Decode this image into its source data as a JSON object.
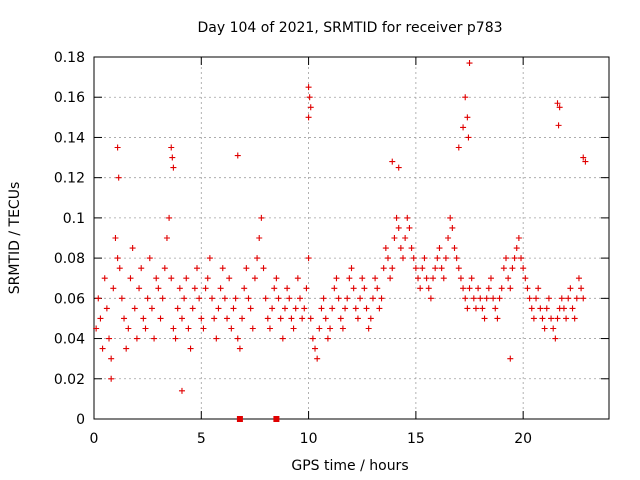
{
  "chart_data": {
    "type": "scatter",
    "title": "Day 104 of 2021, SRMTID for receiver p783",
    "xlabel": "GPS time / hours",
    "ylabel": "SRMTID / TECUs",
    "xlim": [
      0,
      24
    ],
    "ylim": [
      0,
      0.18
    ],
    "x_ticks": [
      0,
      5,
      10,
      15,
      20
    ],
    "x_tick_labels": [
      "0",
      "5",
      "10",
      "15",
      "20"
    ],
    "y_ticks": [
      0,
      0.02,
      0.04,
      0.06,
      0.08,
      0.1,
      0.12,
      0.14,
      0.16,
      0.18
    ],
    "y_tick_labels": [
      "0",
      "0.02",
      "0.04",
      "0.06",
      "0.08",
      "0.1",
      "0.12",
      "0.14",
      "0.16",
      "0.18"
    ],
    "grid": true,
    "marker": "+",
    "color": "#e00000",
    "data_gap_markers_x": [
      6.8,
      8.5
    ],
    "series": [
      {
        "name": "SRMTID",
        "x": [
          0.1,
          0.2,
          0.3,
          0.4,
          0.5,
          0.6,
          0.7,
          0.8,
          0.9,
          1.0,
          1.1,
          1.2,
          1.3,
          1.4,
          1.5,
          1.6,
          1.7,
          1.8,
          1.9,
          2.0,
          2.1,
          2.2,
          2.3,
          2.4,
          2.5,
          2.6,
          2.7,
          2.8,
          2.9,
          3.0,
          3.1,
          3.2,
          3.3,
          3.4,
          3.5,
          3.6,
          3.7,
          3.8,
          3.9,
          4.0,
          4.1,
          4.2,
          4.3,
          4.4,
          4.5,
          4.6,
          4.7,
          4.8,
          4.9,
          5.0,
          5.1,
          5.2,
          5.3,
          5.4,
          5.5,
          5.6,
          5.7,
          5.8,
          5.9,
          6.0,
          6.1,
          6.2,
          6.3,
          6.4,
          6.5,
          6.6,
          6.7,
          6.8,
          6.9,
          7.0,
          7.1,
          7.2,
          7.3,
          7.4,
          7.5,
          7.6,
          7.7,
          7.8,
          7.9,
          8.0,
          8.1,
          8.2,
          8.3,
          8.4,
          8.5,
          8.6,
          8.7,
          8.8,
          8.9,
          9.0,
          9.1,
          9.2,
          9.3,
          9.4,
          9.5,
          9.6,
          9.7,
          9.8,
          9.9,
          10.0,
          10.1,
          10.2,
          10.3,
          10.4,
          10.5,
          10.6,
          10.7,
          10.8,
          10.9,
          11.0,
          11.1,
          11.2,
          11.3,
          11.4,
          11.5,
          11.6,
          11.7,
          11.8,
          11.9,
          12.0,
          12.1,
          12.2,
          12.3,
          12.4,
          12.5,
          12.6,
          12.7,
          12.8,
          12.9,
          13.0,
          13.1,
          13.2,
          13.3,
          13.4,
          13.5,
          13.6,
          13.7,
          13.8,
          13.9,
          14.0,
          14.1,
          14.2,
          14.3,
          14.4,
          14.5,
          14.6,
          14.7,
          14.8,
          14.9,
          15.0,
          15.1,
          15.2,
          15.3,
          15.4,
          15.5,
          15.6,
          15.7,
          15.8,
          15.9,
          16.0,
          16.1,
          16.2,
          16.3,
          16.4,
          16.5,
          16.6,
          16.7,
          16.8,
          16.9,
          17.0,
          17.1,
          17.2,
          17.3,
          17.4,
          17.5,
          17.6,
          17.7,
          17.8,
          17.9,
          18.0,
          18.1,
          18.2,
          18.3,
          18.4,
          18.5,
          18.6,
          18.7,
          18.8,
          18.9,
          19.0,
          19.1,
          19.2,
          19.3,
          19.4,
          19.5,
          19.6,
          19.7,
          19.8,
          19.9,
          20.0,
          20.1,
          20.2,
          20.3,
          20.4,
          20.5,
          20.6,
          20.7,
          20.8,
          20.9,
          21.0,
          21.1,
          21.2,
          21.3,
          21.4,
          21.5,
          21.6,
          21.7,
          21.8,
          21.9,
          22.0,
          22.1,
          22.2,
          22.3,
          22.4,
          22.5,
          22.6,
          22.7,
          22.8,
          1.1,
          1.15,
          3.6,
          3.65,
          3.7,
          10.0,
          10.05,
          10.1,
          10.0,
          13.9,
          14.2,
          17.3,
          17.4,
          17.45,
          17.5,
          17.2,
          17.0,
          21.6,
          21.7,
          21.65,
          22.8,
          22.9,
          6.7,
          4.1,
          0.8,
          19.4
        ],
        "y": [
          0.045,
          0.06,
          0.05,
          0.035,
          0.07,
          0.055,
          0.04,
          0.03,
          0.065,
          0.09,
          0.08,
          0.075,
          0.06,
          0.05,
          0.035,
          0.045,
          0.07,
          0.085,
          0.055,
          0.04,
          0.065,
          0.075,
          0.05,
          0.045,
          0.06,
          0.08,
          0.055,
          0.04,
          0.07,
          0.065,
          0.05,
          0.06,
          0.075,
          0.09,
          0.1,
          0.07,
          0.045,
          0.04,
          0.055,
          0.065,
          0.05,
          0.06,
          0.07,
          0.045,
          0.035,
          0.055,
          0.065,
          0.075,
          0.06,
          0.05,
          0.045,
          0.065,
          0.07,
          0.08,
          0.06,
          0.05,
          0.04,
          0.055,
          0.065,
          0.075,
          0.06,
          0.05,
          0.07,
          0.045,
          0.055,
          0.06,
          0.04,
          0.035,
          0.05,
          0.065,
          0.075,
          0.06,
          0.055,
          0.045,
          0.07,
          0.08,
          0.09,
          0.1,
          0.075,
          0.06,
          0.05,
          0.045,
          0.055,
          0.065,
          0.07,
          0.06,
          0.05,
          0.04,
          0.055,
          0.065,
          0.06,
          0.05,
          0.045,
          0.055,
          0.07,
          0.06,
          0.05,
          0.055,
          0.065,
          0.08,
          0.05,
          0.04,
          0.035,
          0.03,
          0.045,
          0.055,
          0.06,
          0.05,
          0.04,
          0.045,
          0.055,
          0.065,
          0.07,
          0.06,
          0.05,
          0.045,
          0.055,
          0.06,
          0.07,
          0.075,
          0.065,
          0.055,
          0.05,
          0.06,
          0.07,
          0.065,
          0.055,
          0.045,
          0.05,
          0.06,
          0.07,
          0.065,
          0.055,
          0.06,
          0.075,
          0.085,
          0.08,
          0.07,
          0.075,
          0.09,
          0.1,
          0.095,
          0.085,
          0.08,
          0.09,
          0.1,
          0.095,
          0.085,
          0.08,
          0.075,
          0.07,
          0.065,
          0.075,
          0.08,
          0.07,
          0.065,
          0.06,
          0.07,
          0.075,
          0.08,
          0.085,
          0.075,
          0.07,
          0.08,
          0.09,
          0.1,
          0.095,
          0.085,
          0.08,
          0.075,
          0.07,
          0.065,
          0.06,
          0.055,
          0.065,
          0.07,
          0.06,
          0.055,
          0.065,
          0.06,
          0.055,
          0.05,
          0.06,
          0.065,
          0.07,
          0.06,
          0.055,
          0.05,
          0.06,
          0.065,
          0.075,
          0.08,
          0.07,
          0.065,
          0.075,
          0.08,
          0.085,
          0.09,
          0.08,
          0.075,
          0.07,
          0.065,
          0.06,
          0.055,
          0.05,
          0.06,
          0.065,
          0.055,
          0.05,
          0.045,
          0.055,
          0.06,
          0.05,
          0.045,
          0.04,
          0.05,
          0.055,
          0.06,
          0.055,
          0.05,
          0.06,
          0.065,
          0.055,
          0.05,
          0.06,
          0.07,
          0.065,
          0.06,
          0.135,
          0.12,
          0.135,
          0.13,
          0.125,
          0.165,
          0.16,
          0.155,
          0.15,
          0.128,
          0.125,
          0.16,
          0.15,
          0.14,
          0.177,
          0.145,
          0.135,
          0.157,
          0.155,
          0.146,
          0.13,
          0.128,
          0.131,
          0.014,
          0.02,
          0.03
        ]
      }
    ]
  }
}
